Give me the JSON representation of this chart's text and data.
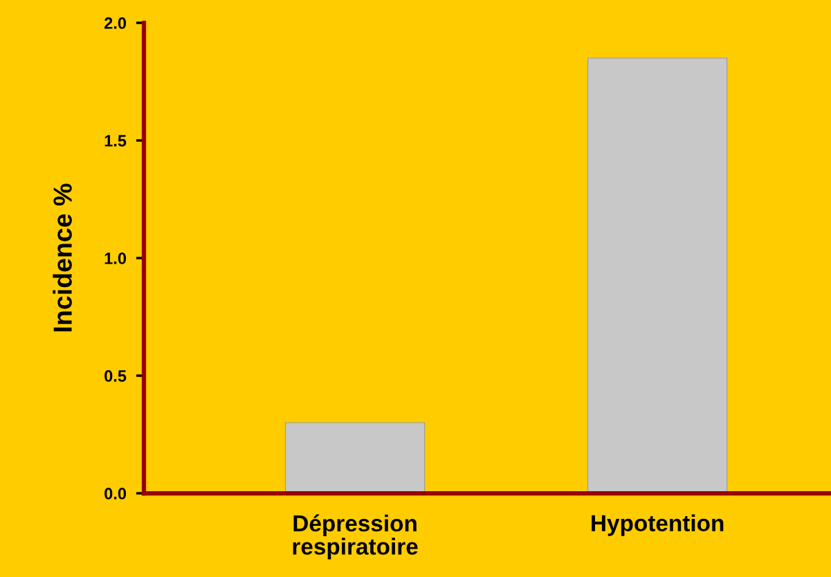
{
  "chart_data": {
    "type": "bar",
    "ylabel": "Incidence %",
    "categories": [
      "Dépression\nrespiratoire",
      "Hypotention"
    ],
    "values": [
      0.3,
      1.85
    ],
    "color": "#c8c8c8",
    "ylim": [
      0,
      2.0
    ],
    "yticks": [
      {
        "value": 0,
        "label": "0.0"
      },
      {
        "value": 0.5,
        "label": "0.5"
      },
      {
        "value": 1.0,
        "label": "1.0"
      },
      {
        "value": 1.5,
        "label": "1.5"
      },
      {
        "value": 2.0,
        "label": "2.0"
      }
    ],
    "grid": false,
    "legend": false
  }
}
